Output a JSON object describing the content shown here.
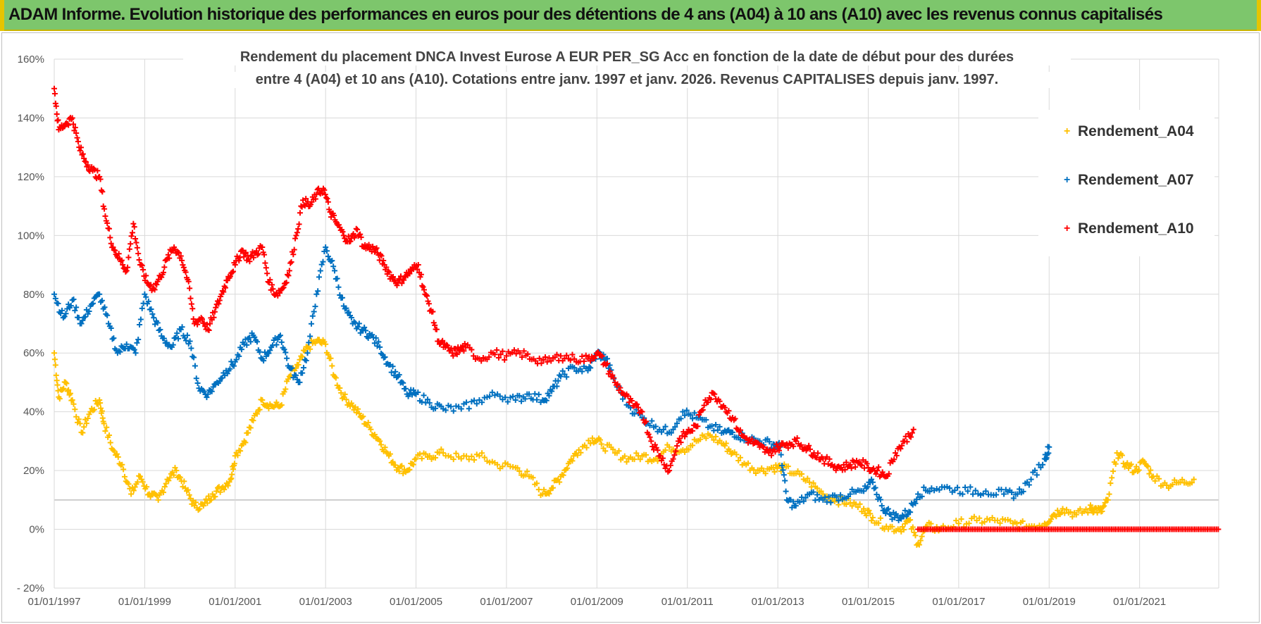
{
  "header": {
    "title": "ADAM Informe. Evolution historique des performances en euros pour des détentions de 4 ans (A04) à 10 ans (A10) avec les revenus connus capitalisés"
  },
  "chart_data": {
    "type": "scatter",
    "title_line1": "Rendement du placement DNCA Invest Eurose A EUR PER_SG Acc en fonction de la date de début pour des durées",
    "title_line2": "entre 4 (A04) et 10 ans (A10).  Cotations entre janv. 1997 et janv. 2026. Revenus CAPITALISES  depuis janv. 1997.",
    "xlabel": "",
    "ylabel": "",
    "xlim": [
      1997.0,
      2022.75
    ],
    "ylim": [
      -20,
      160
    ],
    "x_tick_values": [
      1997,
      1999,
      2001,
      2003,
      2005,
      2007,
      2009,
      2011,
      2013,
      2015,
      2017,
      2019,
      2021
    ],
    "x_tick_labels": [
      "01/01/1997",
      "01/01/1999",
      "01/01/2001",
      "01/01/2003",
      "01/01/2005",
      "01/01/2007",
      "01/01/2009",
      "01/01/2011",
      "01/01/2013",
      "01/01/2015",
      "01/01/2017",
      "01/01/2019",
      "01/01/2021"
    ],
    "y_tick_values": [
      -20,
      0,
      20,
      40,
      60,
      80,
      100,
      120,
      140,
      160
    ],
    "y_tick_labels": [
      "- 20%",
      "0%",
      "20%",
      "40%",
      "60%",
      "80%",
      "100%",
      "120%",
      "140%",
      "160%"
    ],
    "extra_gridline": 10,
    "legend_position": "top-right",
    "marker": "+",
    "series": [
      {
        "name": "Rendement_A04",
        "color": "#ffc000",
        "x": [
          1997.0,
          1997.1,
          1997.25,
          1997.4,
          1997.6,
          1997.8,
          1998.0,
          1998.1,
          1998.3,
          1998.5,
          1998.7,
          1998.9,
          1999.1,
          1999.3,
          1999.5,
          1999.7,
          1999.9,
          2000.1,
          2000.3,
          2000.5,
          2000.7,
          2000.9,
          2001.0,
          2001.2,
          2001.4,
          2001.6,
          2001.8,
          2002.0,
          2002.2,
          2002.4,
          2002.6,
          2002.8,
          2003.0,
          2003.2,
          2003.4,
          2003.6,
          2003.8,
          2004.0,
          2004.2,
          2004.4,
          2004.6,
          2004.8,
          2005.0,
          2005.3,
          2005.6,
          2006.0,
          2006.4,
          2006.8,
          2007.2,
          2007.5,
          2007.8,
          2008.0,
          2008.2,
          2008.4,
          2008.6,
          2008.9,
          2009.1,
          2009.4,
          2009.7,
          2010.0,
          2010.3,
          2010.6,
          2010.9,
          2011.2,
          2011.5,
          2011.8,
          2012.0,
          2012.3,
          2012.6,
          2012.9,
          2013.1,
          2013.4,
          2013.7,
          2014.0,
          2014.3,
          2014.6,
          2014.9,
          2015.1,
          2015.4,
          2015.7,
          2015.9,
          2016.1,
          2016.3,
          2016.6,
          2017.0,
          2017.4,
          2017.8,
          2018.2,
          2018.5,
          2018.9,
          2019.1,
          2019.3,
          2019.6,
          2019.9,
          2020.0,
          2020.15,
          2020.3,
          2020.5,
          2020.7,
          2020.9,
          2021.1,
          2021.3,
          2021.6,
          2021.9,
          2022.2
        ],
        "y": [
          60,
          45,
          50,
          44,
          33,
          40,
          44,
          36,
          27,
          22,
          12,
          18,
          12,
          10,
          17,
          20,
          14,
          8,
          8,
          12,
          14,
          17,
          25,
          30,
          37,
          44,
          42,
          42,
          52,
          56,
          62,
          64,
          63,
          52,
          45,
          42,
          38,
          34,
          30,
          25,
          21,
          20,
          24,
          25,
          26,
          24,
          25,
          22,
          21,
          18,
          12,
          14,
          18,
          23,
          27,
          31,
          29,
          26,
          24,
          25,
          24,
          28,
          27,
          30,
          32,
          29,
          26,
          22,
          20,
          21,
          21,
          19,
          16,
          12,
          10,
          9,
          7,
          4,
          1,
          0,
          3,
          -5,
          1,
          0,
          2,
          3,
          3,
          2,
          1,
          2,
          5,
          7,
          5,
          7,
          7,
          6,
          10,
          26,
          22,
          20,
          23,
          18,
          15,
          16,
          17
        ]
      },
      {
        "name": "Rendement_A07",
        "color": "#0070c0",
        "x": [
          1997.0,
          1997.2,
          1997.4,
          1997.6,
          1997.8,
          1998.0,
          1998.2,
          1998.4,
          1998.6,
          1998.8,
          1999.0,
          1999.2,
          1999.4,
          1999.6,
          1999.8,
          2000.0,
          2000.2,
          2000.4,
          2000.6,
          2000.8,
          2001.0,
          2001.2,
          2001.4,
          2001.6,
          2001.8,
          2002.0,
          2002.2,
          2002.4,
          2002.6,
          2002.8,
          2003.0,
          2003.2,
          2003.4,
          2003.6,
          2003.8,
          2004.0,
          2004.2,
          2004.4,
          2004.6,
          2004.8,
          2005.0,
          2005.3,
          2005.6,
          2006.0,
          2006.4,
          2006.8,
          2007.2,
          2007.5,
          2007.8,
          2008.0,
          2008.2,
          2008.5,
          2008.8,
          2009.0,
          2009.2,
          2009.4,
          2009.7,
          2010.0,
          2010.3,
          2010.6,
          2010.9,
          2011.2,
          2011.5,
          2011.8,
          2012.0,
          2012.3,
          2012.6,
          2012.9,
          2013.05,
          2013.2,
          2013.4,
          2013.7,
          2014.0,
          2014.3,
          2014.6,
          2014.9,
          2015.1,
          2015.3,
          2015.5,
          2015.7,
          2015.9,
          2016.1,
          2016.4,
          2016.8,
          2017.2,
          2017.6,
          2018.0,
          2018.3,
          2018.6,
          2018.9,
          2019.0
        ],
        "y": [
          80,
          72,
          78,
          70,
          76,
          80,
          70,
          60,
          63,
          60,
          80,
          72,
          65,
          62,
          68,
          64,
          48,
          46,
          50,
          54,
          57,
          63,
          66,
          58,
          62,
          66,
          55,
          50,
          60,
          80,
          96,
          88,
          76,
          70,
          68,
          66,
          62,
          56,
          52,
          46,
          46,
          43,
          41,
          41,
          44,
          46,
          44,
          46,
          44,
          47,
          52,
          55,
          54,
          60,
          58,
          50,
          42,
          38,
          35,
          33,
          40,
          38,
          35,
          33,
          33,
          31,
          30,
          29,
          28,
          10,
          8,
          12,
          10,
          11,
          12,
          13,
          16,
          8,
          5,
          4,
          6,
          12,
          14,
          14,
          13,
          13,
          12,
          12,
          17,
          24,
          28
        ]
      },
      {
        "name": "Rendement_A10",
        "color": "#ff0000",
        "x": [
          1997.0,
          1997.1,
          1997.25,
          1997.4,
          1997.55,
          1997.7,
          1997.85,
          1998.0,
          1998.15,
          1998.3,
          1998.45,
          1998.6,
          1998.75,
          1998.9,
          1999.05,
          1999.2,
          1999.35,
          1999.5,
          1999.65,
          1999.8,
          1999.95,
          2000.1,
          2000.25,
          2000.4,
          2000.55,
          2000.7,
          2000.85,
          2001.0,
          2001.15,
          2001.3,
          2001.45,
          2001.6,
          2001.75,
          2001.9,
          2002.05,
          2002.2,
          2002.35,
          2002.5,
          2002.65,
          2002.8,
          2002.95,
          2003.1,
          2003.25,
          2003.4,
          2003.55,
          2003.7,
          2003.85,
          2004.0,
          2004.15,
          2004.3,
          2004.45,
          2004.6,
          2004.75,
          2004.9,
          2005.05,
          2005.2,
          2005.35,
          2005.5,
          2005.65,
          2005.8,
          2005.95,
          2006.1,
          2006.4,
          2006.7,
          2007.0,
          2007.3,
          2007.6,
          2007.9,
          2008.2,
          2008.5,
          2008.8,
          2009.0,
          2009.2,
          2009.4,
          2009.6,
          2009.8,
          2010.0,
          2010.2,
          2010.4,
          2010.6,
          2010.8,
          2011.0,
          2011.2,
          2011.4,
          2011.6,
          2011.8,
          2012.0,
          2012.2,
          2012.4,
          2012.6,
          2012.8,
          2013.0,
          2013.2,
          2013.4,
          2013.6,
          2013.8,
          2014.0,
          2014.2,
          2014.4,
          2014.6,
          2014.8,
          2015.0,
          2015.2,
          2015.4,
          2015.6,
          2015.8,
          2016.0
        ],
        "y": [
          150,
          136,
          138,
          140,
          130,
          125,
          122,
          120,
          105,
          96,
          92,
          88,
          104,
          90,
          84,
          82,
          86,
          92,
          96,
          93,
          85,
          70,
          72,
          68,
          74,
          80,
          86,
          90,
          95,
          92,
          94,
          96,
          84,
          80,
          82,
          88,
          100,
          112,
          110,
          114,
          116,
          108,
          104,
          100,
          98,
          102,
          96,
          96,
          94,
          90,
          86,
          84,
          86,
          88,
          90,
          80,
          74,
          64,
          62,
          60,
          61,
          62,
          58,
          60,
          59,
          60,
          58,
          57,
          59,
          58,
          58,
          60,
          56,
          50,
          46,
          42,
          40,
          30,
          25,
          20,
          30,
          33,
          35,
          44,
          46,
          42,
          38,
          32,
          30,
          28,
          26,
          28,
          29,
          30,
          28,
          26,
          24,
          22,
          21,
          22,
          23,
          21,
          20,
          18,
          26,
          30,
          34
        ]
      }
    ],
    "zero_band": {
      "series": "Rendement_A10",
      "x_start": 2016.1,
      "x_end": 2022.75,
      "y": 0
    }
  }
}
